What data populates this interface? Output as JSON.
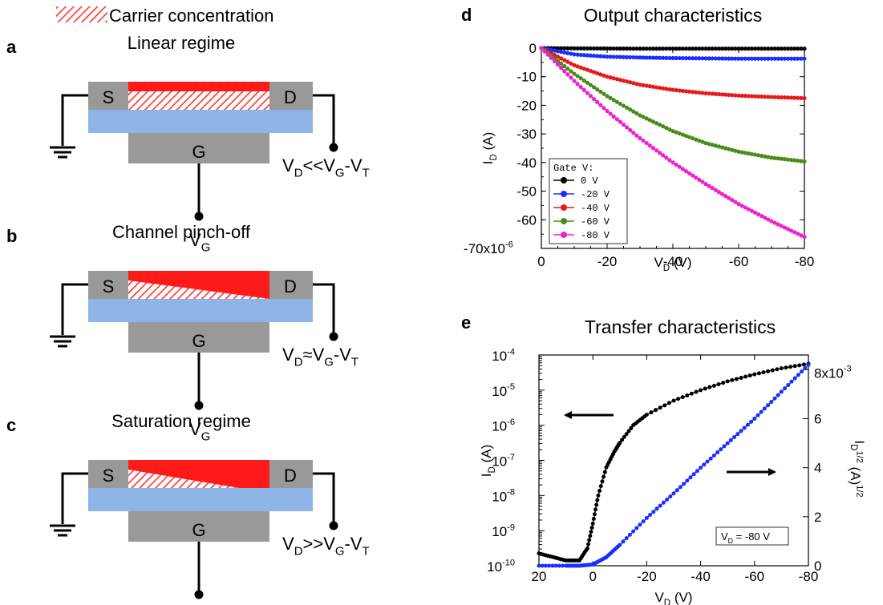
{
  "legend_top": {
    "label": "Carrier concentration"
  },
  "panels": {
    "a": {
      "letter": "a",
      "title": "Linear regime",
      "condition": {
        "base": "V",
        "sub1": "D",
        "mid": "<<V",
        "sub2": "G",
        "dash": "-V",
        "sub3": "T"
      }
    },
    "b": {
      "letter": "b",
      "title": "Channel pinch-off",
      "condition": {
        "base": "V",
        "sub1": "D",
        "mid": "≈V",
        "sub2": "G",
        "dash": "-V",
        "sub3": "T"
      }
    },
    "c": {
      "letter": "c",
      "title": "Saturation regime",
      "condition": {
        "base": "V",
        "sub1": "D",
        "mid": ">>V",
        "sub2": "G",
        "dash": "-V",
        "sub3": "T"
      }
    }
  },
  "terminals": {
    "source": "S",
    "drain": "D",
    "gate": "G",
    "gate_voltage": {
      "base": "V",
      "sub": "G"
    }
  },
  "colors": {
    "semiconductor": "#ff1a1a",
    "dielectric": "#8fb4e6",
    "electrode": "#999999",
    "hatch": "#ff3333"
  },
  "chart_data": [
    {
      "panel": "d",
      "type": "line",
      "title": "Output characteristics",
      "xlabel": {
        "base": "V",
        "sub": "D",
        "unit": " (V)"
      },
      "ylabel": {
        "base": "I",
        "sub": "D",
        "unit": " (A)"
      },
      "xlim": [
        0,
        -80
      ],
      "ylim": [
        -7e-05,
        0
      ],
      "x_ticks": [
        "0",
        "-20",
        "-40",
        "-60",
        "-80"
      ],
      "y_ticks": [
        "0",
        "-10",
        "-20",
        "-30",
        "-40",
        "-50",
        "-60",
        "-70x10"
      ],
      "y_exponent": "-6",
      "legend": {
        "title": "Gate V:",
        "position": "bottom-left"
      },
      "series": [
        {
          "name": "0 V",
          "color": "#000000",
          "x": [
            0,
            -10,
            -20,
            -30,
            -40,
            -50,
            -60,
            -70,
            -80
          ],
          "y": [
            0,
            -1e-07,
            -1.5e-07,
            -2e-07,
            -2e-07,
            -2e-07,
            -2e-07,
            -2e-07,
            -2e-07
          ]
        },
        {
          "name": "-20 V",
          "color": "#1a2eff",
          "x": [
            0,
            -10,
            -20,
            -30,
            -40,
            -50,
            -60,
            -70,
            -80
          ],
          "y": [
            0,
            -2.2e-06,
            -3e-06,
            -3.3e-06,
            -3.5e-06,
            -3.6e-06,
            -3.7e-06,
            -3.7e-06,
            -3.7e-06
          ]
        },
        {
          "name": "-40 V",
          "color": "#e61a1a",
          "x": [
            0,
            -10,
            -20,
            -30,
            -40,
            -50,
            -60,
            -70,
            -80
          ],
          "y": [
            0,
            -6e-06,
            -1e-05,
            -1.28e-05,
            -1.46e-05,
            -1.58e-05,
            -1.66e-05,
            -1.71e-05,
            -1.75e-05
          ]
        },
        {
          "name": "-60 V",
          "color": "#4a8c1c",
          "x": [
            0,
            -10,
            -20,
            -30,
            -40,
            -50,
            -60,
            -70,
            -80
          ],
          "y": [
            0,
            -9e-06,
            -1.68e-05,
            -2.35e-05,
            -2.9e-05,
            -3.32e-05,
            -3.62e-05,
            -3.83e-05,
            -3.96e-05
          ]
        },
        {
          "name": "-80 V",
          "color": "#ee22cc",
          "x": [
            0,
            -10,
            -20,
            -30,
            -40,
            -50,
            -60,
            -70,
            -80
          ],
          "y": [
            0,
            -1.15e-05,
            -2.2e-05,
            -3.15e-05,
            -4e-05,
            -4.75e-05,
            -5.45e-05,
            -6.05e-05,
            -6.6e-05
          ]
        }
      ]
    },
    {
      "panel": "e",
      "type": "line",
      "title": "Transfer characteristics",
      "xlabel": {
        "base": "V",
        "sub": "D",
        "unit": " (V)"
      },
      "ylabel_left": {
        "base": "I",
        "sub": "D",
        "unit": " (A)"
      },
      "ylabel_right": {
        "base": "I",
        "sub": "D",
        "sup": "1/2",
        "unit": " (A)",
        "unit_sup": "1/2"
      },
      "xlim": [
        20,
        -80
      ],
      "ylim_left_log10": [
        -10,
        -4
      ],
      "ylim_right": [
        0,
        0.0086
      ],
      "log_left": true,
      "x_ticks": [
        "20",
        "0",
        "-20",
        "-40",
        "-60",
        "-80"
      ],
      "y_left_ticks": [
        -10,
        -9,
        -8,
        -7,
        -6,
        -5,
        -4
      ],
      "y_right_ticks": [
        "0",
        "2",
        "4",
        "6",
        "8x10"
      ],
      "y_right_exponent": "-3",
      "annotation": {
        "base": "V",
        "sub": "D",
        "rest": " = -80 V"
      },
      "series": [
        {
          "name": "I_D (log, left axis)",
          "color": "#000000",
          "axis": "left",
          "x": [
            20,
            15,
            10,
            5,
            2,
            0,
            -2,
            -5,
            -8,
            -10,
            -15,
            -20,
            -30,
            -40,
            -50,
            -60,
            -70,
            -80
          ],
          "log10_y": [
            -9.65,
            -9.75,
            -9.85,
            -9.85,
            -9.5,
            -8.8,
            -8.0,
            -7.2,
            -6.75,
            -6.5,
            -6.0,
            -5.7,
            -5.3,
            -5.0,
            -4.75,
            -4.55,
            -4.38,
            -4.25
          ]
        },
        {
          "name": "I_D^1/2 (linear, right axis)",
          "color": "#1a2eff",
          "axis": "right",
          "x": [
            20,
            10,
            5,
            0,
            -5,
            -10,
            -20,
            -30,
            -40,
            -50,
            -60,
            -70,
            -80
          ],
          "y": [
            0,
            0,
            0,
            5e-05,
            0.00035,
            0.00085,
            0.00195,
            0.00295,
            0.004,
            0.005,
            0.006,
            0.0071,
            0.0082
          ]
        }
      ]
    }
  ]
}
